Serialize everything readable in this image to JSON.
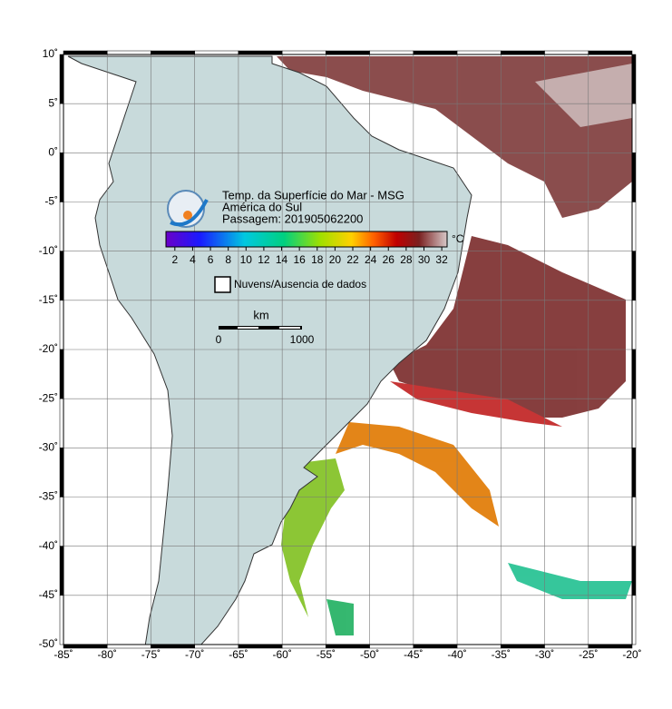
{
  "map": {
    "xlim": [
      -85,
      -20
    ],
    "ylim": [
      -50,
      10
    ],
    "xticks": [
      {
        "value": -85,
        "label": "-85˚"
      },
      {
        "value": -80,
        "label": "-80˚"
      },
      {
        "value": -75,
        "label": "-75˚"
      },
      {
        "value": -70,
        "label": "-70˚"
      },
      {
        "value": -65,
        "label": "-65˚"
      },
      {
        "value": -60,
        "label": "-60˚"
      },
      {
        "value": -55,
        "label": "-55˚"
      },
      {
        "value": -50,
        "label": "-50˚"
      },
      {
        "value": -45,
        "label": "-45˚"
      },
      {
        "value": -40,
        "label": "-40˚"
      },
      {
        "value": -35,
        "label": "-35˚"
      },
      {
        "value": -30,
        "label": "-30˚"
      },
      {
        "value": -25,
        "label": "-25˚"
      },
      {
        "value": -20,
        "label": "-20˚"
      }
    ],
    "yticks": [
      {
        "value": 10,
        "label": "10˚"
      },
      {
        "value": 5,
        "label": "5˚"
      },
      {
        "value": 0,
        "label": "0˚"
      },
      {
        "value": -5,
        "label": "-5˚"
      },
      {
        "value": -10,
        "label": "-10˚"
      },
      {
        "value": -15,
        "label": "-15˚"
      },
      {
        "value": -20,
        "label": "-20˚"
      },
      {
        "value": -25,
        "label": "-25˚"
      },
      {
        "value": -30,
        "label": "-30˚"
      },
      {
        "value": -35,
        "label": "-35˚"
      },
      {
        "value": -40,
        "label": "-40˚"
      },
      {
        "value": -45,
        "label": "-45˚"
      },
      {
        "value": -50,
        "label": "-50˚"
      }
    ],
    "grid": true
  },
  "info": {
    "title": "Temp. da Superfície do Mar - MSG",
    "region": "América do Sul",
    "pass": "Passagem: 201905062200"
  },
  "colorbar": {
    "unit": "°C",
    "lim": [
      1,
      32.6
    ],
    "ticks": [
      2,
      4,
      6,
      8,
      10,
      12,
      14,
      16,
      18,
      20,
      22,
      24,
      26,
      28,
      30,
      32
    ]
  },
  "legend": {
    "label": "Nuvens/Ausencia de dados"
  },
  "scale": {
    "unit": "km",
    "start": "0",
    "end": "1000"
  }
}
